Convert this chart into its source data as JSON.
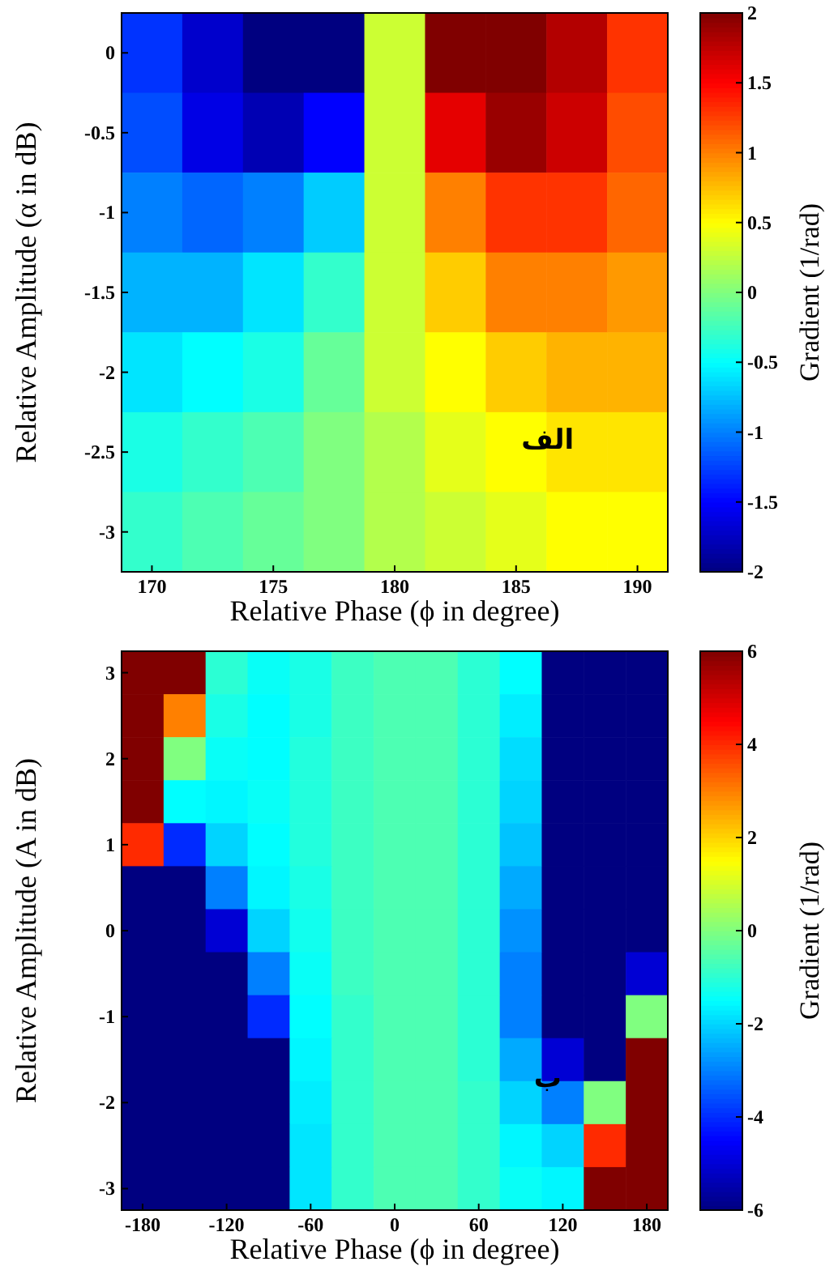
{
  "chart_data": [
    {
      "type": "heatmap",
      "xlabel": "Relative Phase (ϕ in degree)",
      "ylabel": "Relative Amplitude (α in dB)",
      "clabel": "Gradient (1/rad)",
      "annotations": [
        "الف"
      ],
      "categories": [
        "170",
        null,
        "175",
        null,
        "180",
        null,
        "185",
        null,
        "190"
      ],
      "y_categories": [
        "0",
        "-0.5",
        "-1",
        "-1.5",
        "-2",
        "-2.5",
        "-3"
      ],
      "clim": [
        -2,
        2
      ],
      "cticks": [
        2,
        1.5,
        1,
        0.5,
        0,
        -0.5,
        -1,
        -1.5,
        -2
      ],
      "cells": [
        [
          -1.3,
          -1.7,
          -2,
          -2,
          0.3,
          2,
          2,
          1.8,
          1.3
        ],
        [
          -1.2,
          -1.6,
          -1.8,
          -1.5,
          0.3,
          1.6,
          1.9,
          1.7,
          1.2
        ],
        [
          -1.0,
          -1.1,
          -1.0,
          -0.7,
          0.3,
          1.0,
          1.3,
          1.3,
          1.1
        ],
        [
          -0.8,
          -0.8,
          -0.6,
          -0.3,
          0.3,
          0.7,
          1.0,
          1.0,
          0.9
        ],
        [
          -0.6,
          -0.5,
          -0.4,
          -0.1,
          0.3,
          0.5,
          0.7,
          0.8,
          0.8
        ],
        [
          -0.4,
          -0.3,
          -0.2,
          0.0,
          0.2,
          0.4,
          0.5,
          0.6,
          0.6
        ],
        [
          -0.3,
          -0.2,
          -0.1,
          0.0,
          0.2,
          0.3,
          0.4,
          0.5,
          0.5
        ]
      ]
    },
    {
      "type": "heatmap",
      "xlabel": "Relative Phase (ϕ in degree)",
      "ylabel": "Relative Amplitude (A in dB)",
      "clabel": "Gradient (1/rad)",
      "annotations": [
        "ب"
      ],
      "categories": [
        "-180",
        null,
        "-120",
        null,
        "-60",
        null,
        "0",
        null,
        "60",
        null,
        "120",
        null,
        "180"
      ],
      "y_categories": [
        "3",
        null,
        "2",
        null,
        "1",
        null,
        "0",
        null,
        "-1",
        null,
        "-2",
        null,
        "-3"
      ],
      "clim": [
        -6,
        6
      ],
      "cticks": [
        6,
        4,
        2,
        0,
        -2,
        -4,
        -6
      ],
      "cells": [
        [
          6,
          6,
          -1,
          -1.4,
          -1.2,
          -0.8,
          -0.6,
          -0.6,
          -1,
          -1.5,
          -6,
          -6,
          -6
        ],
        [
          6,
          3,
          -1.2,
          -1.5,
          -1.2,
          -0.8,
          -0.6,
          -0.6,
          -1,
          -1.7,
          -6,
          -6,
          -6
        ],
        [
          6,
          0,
          -1.4,
          -1.5,
          -1.1,
          -0.8,
          -0.6,
          -0.6,
          -1,
          -1.9,
          -6,
          -6,
          -6
        ],
        [
          6,
          -1.5,
          -1.6,
          -1.4,
          -1.1,
          -0.8,
          -0.6,
          -0.6,
          -1,
          -2,
          -6,
          -6,
          -6
        ],
        [
          4,
          -4,
          -2,
          -1.5,
          -1.1,
          -0.8,
          -0.6,
          -0.6,
          -1,
          -2.2,
          -6,
          -6,
          -6
        ],
        [
          -6,
          -6,
          -3,
          -1.6,
          -1.2,
          -0.8,
          -0.6,
          -0.6,
          -1,
          -2.5,
          -6,
          -6,
          -6
        ],
        [
          -6,
          -6,
          -5,
          -2,
          -1.3,
          -0.8,
          -0.6,
          -0.6,
          -1,
          -2.8,
          -6,
          -6,
          -6
        ],
        [
          -6,
          -6,
          -6,
          -3,
          -1.4,
          -0.8,
          -0.6,
          -0.6,
          -1,
          -3,
          -6,
          -6,
          -5
        ],
        [
          -6,
          -6,
          -6,
          -4,
          -1.5,
          -0.9,
          -0.6,
          -0.6,
          -1,
          -3,
          -6,
          -6,
          0
        ],
        [
          -6,
          -6,
          -6,
          -6,
          -1.6,
          -0.9,
          -0.6,
          -0.6,
          -1,
          -2.5,
          -5,
          -6,
          6
        ],
        [
          -6,
          -6,
          -6,
          -6,
          -1.7,
          -0.9,
          -0.6,
          -0.6,
          -0.9,
          -2,
          -3,
          0,
          6
        ],
        [
          -6,
          -6,
          -6,
          -6,
          -1.8,
          -0.9,
          -0.6,
          -0.6,
          -0.9,
          -1.6,
          -2,
          4,
          6
        ],
        [
          -6,
          -6,
          -6,
          -6,
          -1.8,
          -0.9,
          -0.6,
          -0.6,
          -0.9,
          -1.4,
          -1.6,
          6,
          6
        ]
      ]
    }
  ]
}
